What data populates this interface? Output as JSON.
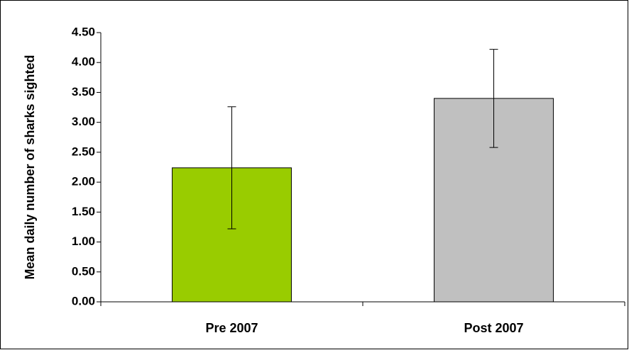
{
  "chart_data": {
    "type": "bar",
    "y_label": "Mean daily number of sharks sighted",
    "categories": [
      "Pre 2007",
      "Post 2007"
    ],
    "values": [
      2.24,
      3.4
    ],
    "errors": [
      1.02,
      0.82
    ],
    "colors": [
      "#99cc00",
      "#c0c0c0"
    ],
    "ylim": [
      0,
      4.5
    ],
    "yticks": [
      {
        "value": 0,
        "label": "0.00"
      },
      {
        "value": 0.5,
        "label": "0.50"
      },
      {
        "value": 1,
        "label": "1.00"
      },
      {
        "value": 1.5,
        "label": "1.50"
      },
      {
        "value": 2,
        "label": "2.00"
      },
      {
        "value": 2.5,
        "label": "2.50"
      },
      {
        "value": 3,
        "label": "3.00"
      },
      {
        "value": 3.5,
        "label": "3.50"
      },
      {
        "value": 4,
        "label": "4.00"
      },
      {
        "value": 4.5,
        "label": "4.50"
      }
    ]
  }
}
